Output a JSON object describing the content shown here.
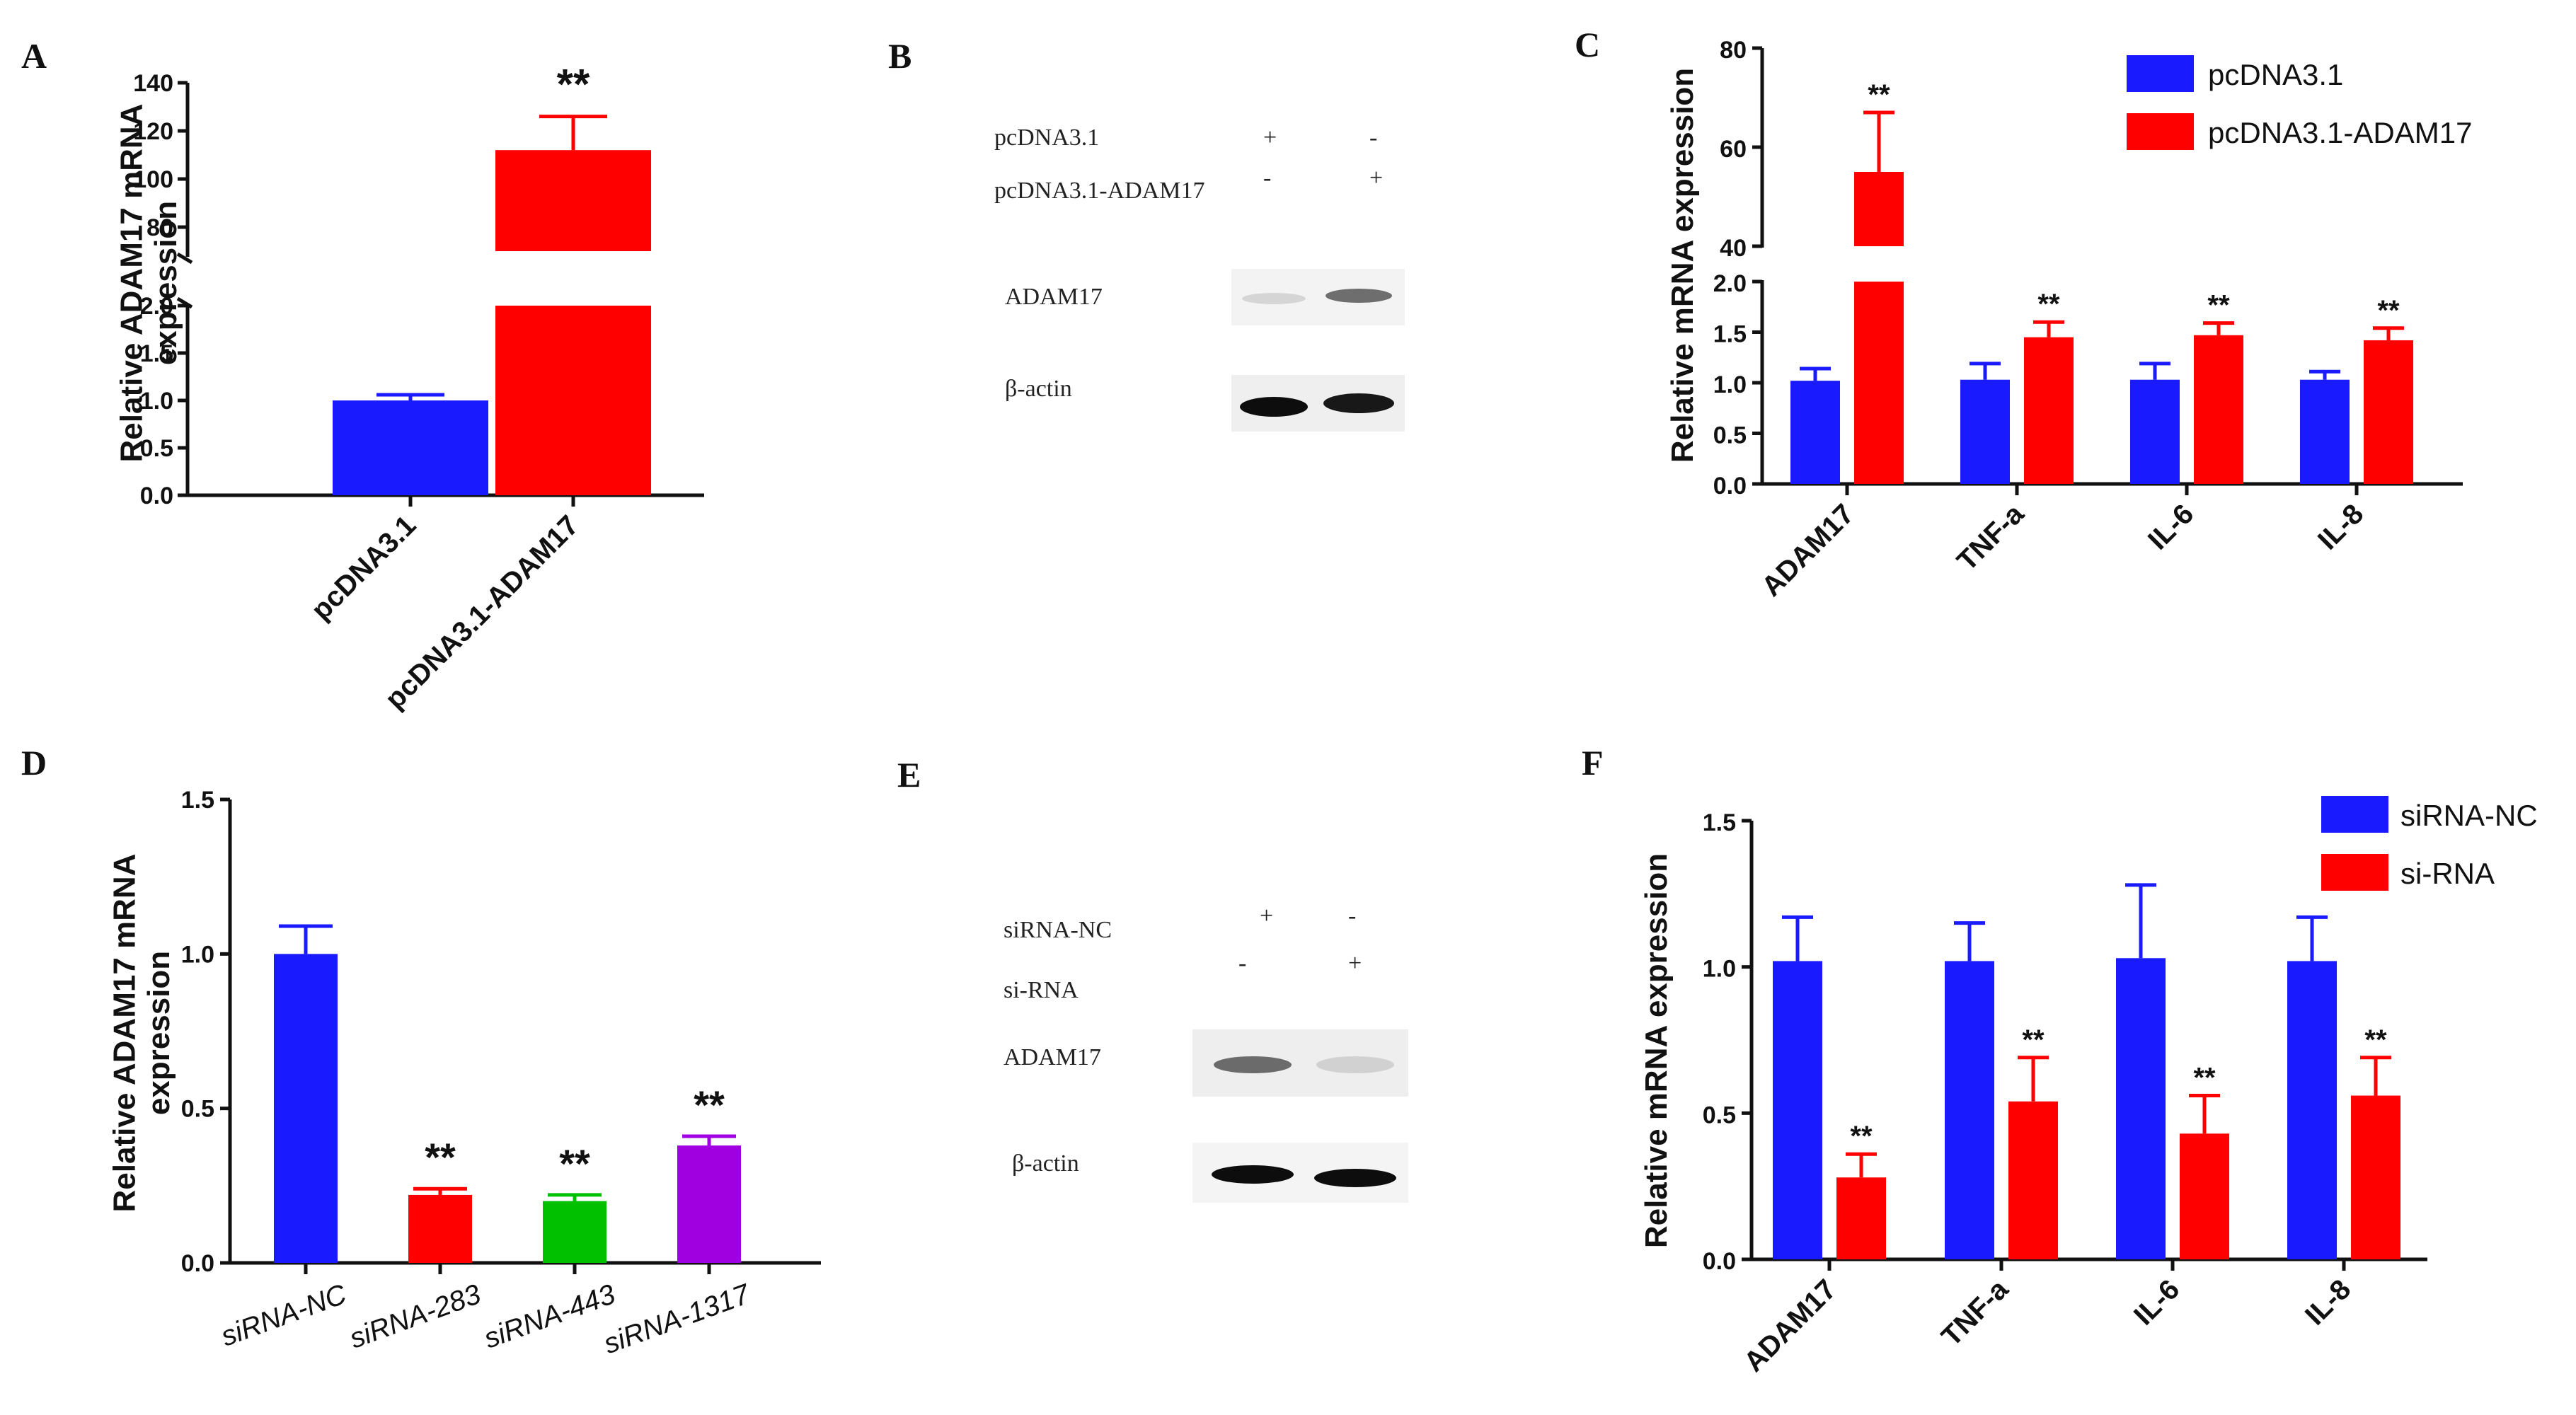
{
  "panels": {
    "A": "A",
    "B": "B",
    "C": "C",
    "D": "D",
    "E": "E",
    "F": "F"
  },
  "colors": {
    "blue": "#1a1aff",
    "red": "#ff0000",
    "green": "#00c000",
    "purple": "#a000e0"
  },
  "chart_data": [
    {
      "panel": "A",
      "type": "bar",
      "ylabel": "Relative ADAM17  mRNA expression",
      "categories": [
        "pcDNA3.1",
        "pcDNA3.1-ADAM17"
      ],
      "values": [
        1.0,
        112
      ],
      "errors": [
        0.06,
        14
      ],
      "colors": [
        "#1a1aff",
        "#ff0000"
      ],
      "significance": [
        "",
        "**"
      ],
      "axis_break": {
        "lower_range": [
          0,
          2.0
        ],
        "upper_range": [
          70,
          140
        ]
      },
      "lower_ticks": [
        "0.0",
        "0.5",
        "1.0",
        "1.5",
        "2.0"
      ],
      "upper_ticks": [
        "80",
        "100",
        "120",
        "140"
      ]
    },
    {
      "panel": "C",
      "type": "bar",
      "ylabel": "Relative mRNA expression",
      "categories": [
        "ADAM17",
        "TNF-a",
        "IL-6",
        "IL-8"
      ],
      "series": [
        {
          "name": "pcDNA3.1",
          "values": [
            1.02,
            1.03,
            1.03,
            1.03
          ],
          "errors": [
            0.12,
            0.16,
            0.16,
            0.08
          ]
        },
        {
          "name": "pcDNA3.1-ADAM17",
          "values": [
            55,
            1.45,
            1.47,
            1.42
          ],
          "errors": [
            12,
            0.15,
            0.12,
            0.12
          ]
        }
      ],
      "significance": [
        "**",
        "**",
        "**",
        "**"
      ],
      "axis_break": {
        "lower_range": [
          0,
          2.0
        ],
        "upper_range": [
          40,
          80
        ]
      },
      "lower_ticks": [
        "0.0",
        "0.5",
        "1.0",
        "1.5",
        "2.0"
      ],
      "upper_ticks": [
        "40",
        "60",
        "80"
      ],
      "legend": "top-right"
    },
    {
      "panel": "D",
      "type": "bar",
      "ylabel": "Relative ADAM17  mRNA expression",
      "categories": [
        "siRNA-NC",
        "siRNA-283",
        "siRNA-443",
        "siRNA-1317"
      ],
      "values": [
        1.0,
        0.22,
        0.2,
        0.38
      ],
      "errors": [
        0.09,
        0.02,
        0.02,
        0.03
      ],
      "colors": [
        "#1a1aff",
        "#ff0000",
        "#00c000",
        "#a000e0"
      ],
      "significance": [
        "",
        "**",
        "**",
        "**"
      ],
      "ylim": [
        0,
        1.5
      ],
      "ticks": [
        "0.0",
        "0.5",
        "1.0",
        "1.5"
      ]
    },
    {
      "panel": "F",
      "type": "bar",
      "ylabel": "Relative mRNA expression",
      "categories": [
        "ADAM17",
        "TNF-a",
        "IL-6",
        "IL-8"
      ],
      "series": [
        {
          "name": "siRNA-NC",
          "values": [
            1.02,
            1.02,
            1.03,
            1.02
          ],
          "errors": [
            0.15,
            0.13,
            0.25,
            0.15
          ]
        },
        {
          "name": "si-RNA",
          "values": [
            0.28,
            0.54,
            0.43,
            0.56
          ],
          "errors": [
            0.08,
            0.15,
            0.13,
            0.13
          ]
        }
      ],
      "significance": [
        "**",
        "**",
        "**",
        "**"
      ],
      "ylim": [
        0,
        1.5
      ],
      "ticks": [
        "0.0",
        "0.5",
        "1.0",
        "1.5"
      ],
      "legend": "top-right"
    }
  ],
  "blot_B": {
    "rows": [
      {
        "label": "pcDNA3.1",
        "marks": [
          "+",
          "-"
        ]
      },
      {
        "label": "pcDNA3.1-ADAM17",
        "marks": [
          "-",
          "+"
        ]
      }
    ],
    "bands": [
      "ADAM17",
      "β-actin"
    ],
    "band_intensity": {
      "ADAM17": [
        0.12,
        0.55
      ],
      "β-actin": [
        0.95,
        0.9
      ]
    }
  },
  "blot_E": {
    "rows": [
      {
        "label": "siRNA-NC",
        "marks": [
          "+",
          "-"
        ]
      },
      {
        "label": "si-RNA",
        "marks": [
          "-",
          "+"
        ]
      }
    ],
    "bands": [
      "ADAM17",
      "β-actin"
    ],
    "band_intensity": {
      "ADAM17": [
        0.55,
        0.12
      ],
      "β-actin": [
        0.95,
        0.95
      ]
    }
  }
}
